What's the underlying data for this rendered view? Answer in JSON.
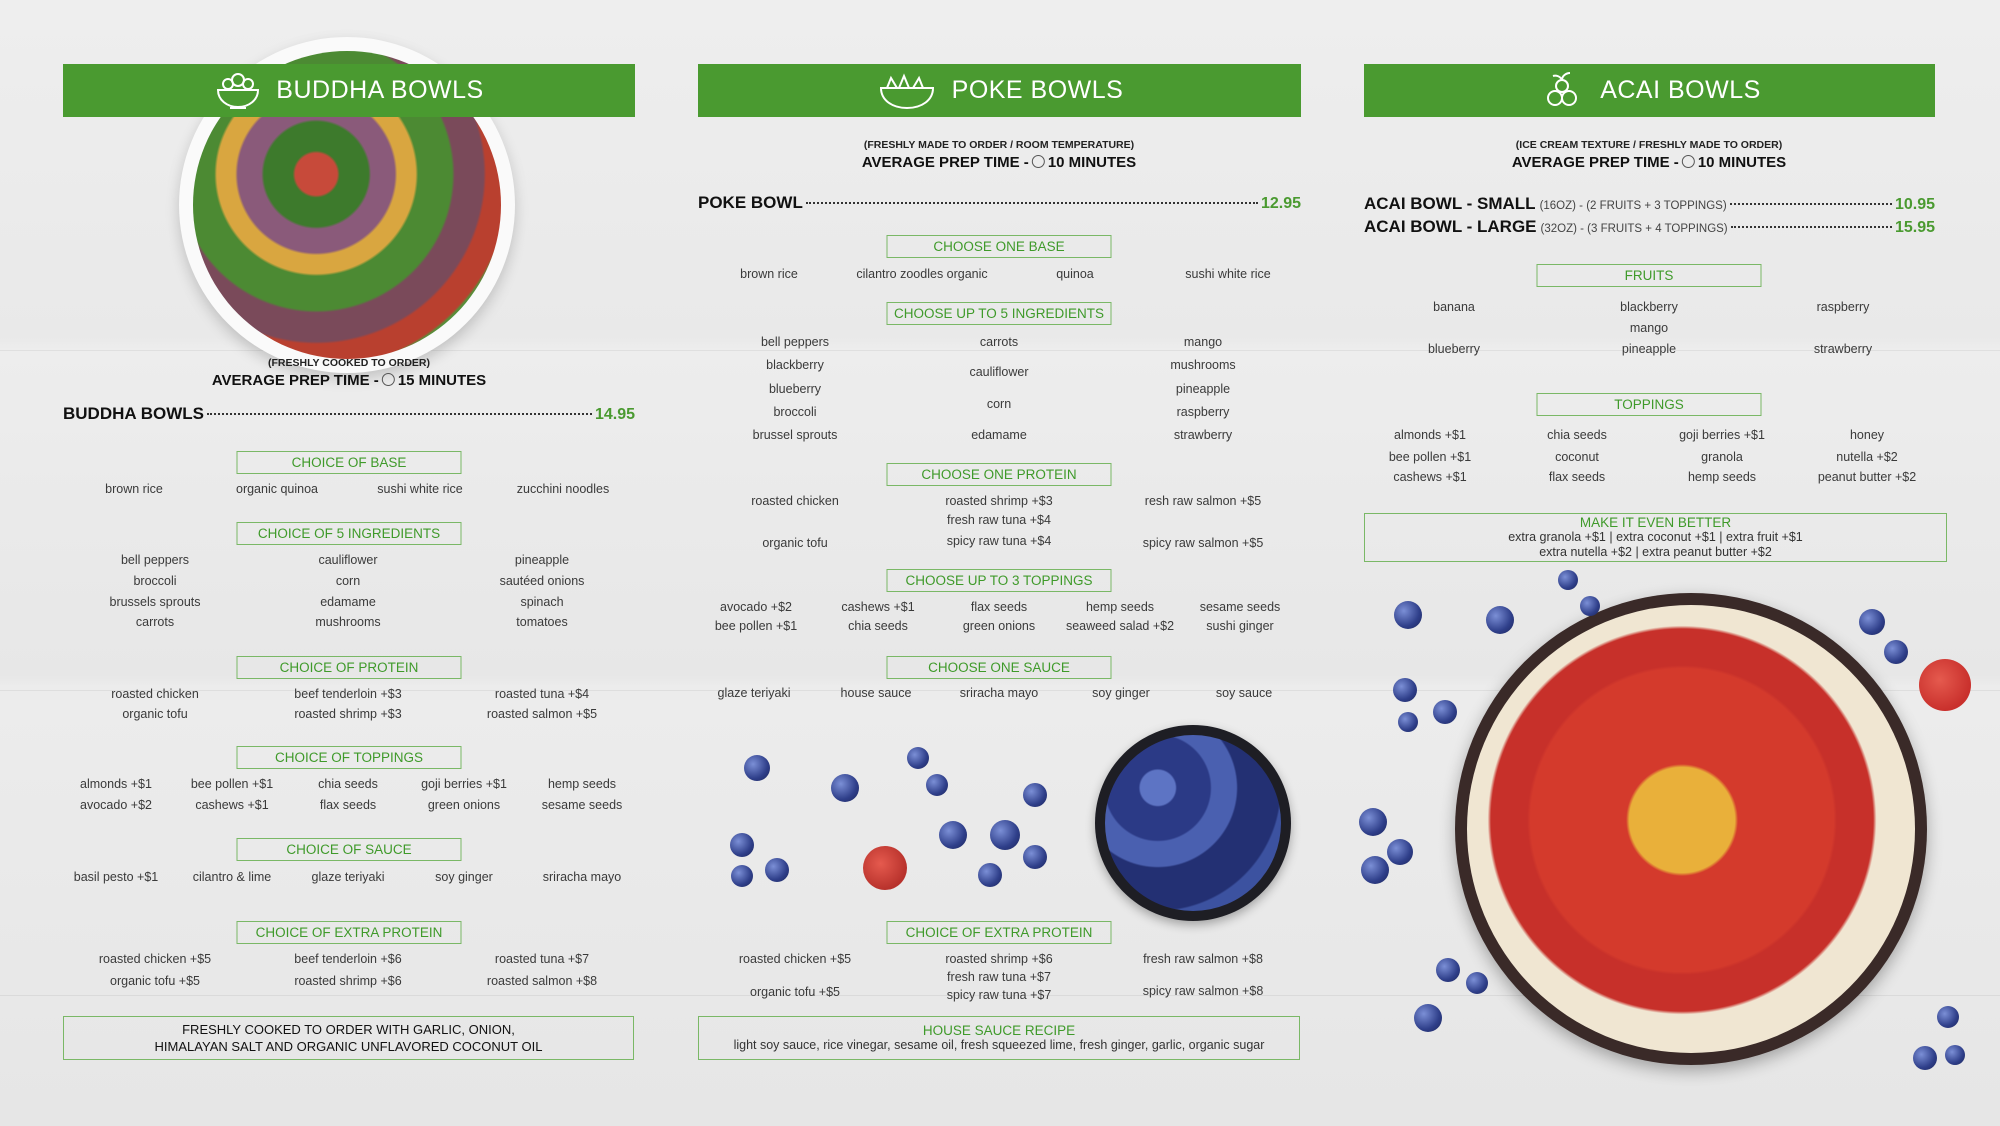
{
  "colors": {
    "brand_green": "#4a9a30",
    "box_border": "#7ab866",
    "text": "#333333"
  },
  "buddha": {
    "title": "BUDDHA BOWLS",
    "icon": "salad-bowl-icon",
    "prep_note": "(FRESHLY COOKED TO ORDER)",
    "prep_label": "AVERAGE PREP TIME  -",
    "prep_time": "15 MINUTES",
    "item_name": "BUDDHA BOWLS",
    "price": "14.95",
    "sections": [
      {
        "title": "CHOICE OF BASE",
        "items": [
          "brown rice",
          "organic quinoa",
          "sushi white rice",
          "zucchini noodles"
        ]
      },
      {
        "title": "CHOICE OF 5 INGREDIENTS",
        "items": [
          "bell peppers",
          "broccoli",
          "brussels sprouts",
          "carrots",
          "cauliflower",
          "corn",
          "edamame",
          "mushrooms",
          "pineapple",
          "sautéed onions",
          "spinach",
          "tomatoes"
        ]
      },
      {
        "title": "CHOICE OF PROTEIN",
        "items": [
          "roasted chicken",
          "organic tofu",
          "beef tenderloin +$3",
          "roasted shrimp +$3",
          "roasted tuna +$4",
          "roasted salmon +$5"
        ]
      },
      {
        "title": "CHOICE OF TOPPINGS",
        "items": [
          "almonds +$1",
          "avocado +$2",
          "bee pollen +$1",
          "cashews +$1",
          "chia seeds",
          "flax seeds",
          "goji berries +$1",
          "green onions",
          "hemp seeds",
          "sesame seeds"
        ]
      },
      {
        "title": "CHOICE OF SAUCE",
        "items": [
          "basil pesto +$1",
          "cilantro & lime",
          "glaze teriyaki",
          "soy ginger",
          "sriracha mayo"
        ]
      },
      {
        "title": "CHOICE OF EXTRA PROTEIN",
        "items": [
          "roasted chicken +$5",
          "organic tofu +$5",
          "beef tenderloin +$6",
          "roasted shrimp +$6",
          "roasted tuna +$7",
          "roasted salmon +$8"
        ]
      }
    ],
    "footer": [
      "FRESHLY COOKED TO ORDER WITH GARLIC, ONION,",
      "HIMALAYAN SALT AND ORGANIC UNFLAVORED COCONUT OIL"
    ]
  },
  "poke": {
    "title": "POKE BOWLS",
    "icon": "poke-bowl-icon",
    "prep_note": "(FRESHLY MADE TO ORDER / ROOM TEMPERATURE)",
    "prep_label": "AVERAGE PREP TIME  -",
    "prep_time": "10 MINUTES",
    "item_name": "POKE BOWL",
    "price": "12.95",
    "sections": [
      {
        "title": "CHOOSE ONE BASE",
        "items": [
          "brown rice",
          "cilantro zoodles organic",
          "quinoa",
          "sushi white rice"
        ]
      },
      {
        "title": "CHOOSE UP TO 5 INGREDIENTS",
        "items": [
          "bell peppers",
          "blackberry",
          "blueberry",
          "broccoli",
          "brussel sprouts",
          "carrots",
          "cauliflower",
          "corn",
          "edamame",
          "mango",
          "mushrooms",
          "pineapple",
          "raspberry",
          "strawberry"
        ]
      },
      {
        "title": "CHOOSE ONE PROTEIN",
        "items": [
          "roasted chicken",
          "organic tofu",
          "roasted shrimp +$3",
          "fresh raw tuna +$4",
          "spicy raw tuna +$4",
          "resh raw salmon +$5",
          "spicy raw salmon +$5"
        ]
      },
      {
        "title": "CHOOSE UP TO 3 TOPPINGS",
        "items": [
          "avocado +$2",
          "bee pollen +$1",
          "cashews +$1",
          "chia seeds",
          "flax seeds",
          "green onions",
          "hemp seeds",
          "seaweed salad +$2",
          "sesame seeds",
          "sushi ginger"
        ]
      },
      {
        "title": "CHOOSE ONE SAUCE",
        "items": [
          "glaze teriyaki",
          "house sauce",
          "sriracha mayo",
          "soy ginger",
          "soy sauce"
        ]
      },
      {
        "title": "CHOICE OF EXTRA PROTEIN",
        "items": [
          "roasted chicken +$5",
          "organic tofu +$5",
          "roasted shrimp +$6",
          "fresh raw tuna +$7",
          "spicy raw tuna +$7",
          "fresh raw salmon +$8",
          "spicy raw salmon +$8"
        ]
      }
    ],
    "footer_title": "HOUSE SAUCE RECIPE",
    "footer": [
      "light soy sauce, rice vinegar, sesame oil, fresh squeezed lime, fresh ginger, garlic, organic sugar"
    ]
  },
  "acai": {
    "title": "ACAI BOWLS",
    "icon": "acai-berries-icon",
    "prep_note": "(ICE CREAM TEXTURE / FRESHLY MADE TO ORDER)",
    "prep_label": "AVERAGE PREP TIME  -",
    "prep_time": "10 MINUTES",
    "prices": [
      {
        "name": "ACAI BOWL - SMALL",
        "detail": "(16OZ) - (2 FRUITS + 3 TOPPINGS)",
        "price": "10.95"
      },
      {
        "name": "ACAI BOWL - LARGE",
        "detail": "(32OZ) - (3 FRUITS + 4 TOPPINGS)",
        "price": "15.95"
      }
    ],
    "sections": [
      {
        "title": "FRUITS",
        "items": [
          "banana",
          "blueberry",
          "blackberry",
          "mango",
          "pineapple",
          "raspberry",
          "strawberry"
        ]
      },
      {
        "title": "TOPPINGS",
        "items": [
          "almonds +$1",
          "bee pollen +$1",
          "cashews +$1",
          "chia seeds",
          "coconut",
          "flax seeds",
          "goji berries +$1",
          "granola",
          "hemp seeds",
          "honey",
          "nutella +$2",
          "peanut butter +$2"
        ]
      }
    ],
    "footer_title": "MAKE IT EVEN BETTER",
    "footer": [
      "extra granola +$1 | extra coconut +$1 | extra fruit +$1",
      "extra nutella +$2 | extra peanut butter +$2"
    ]
  }
}
